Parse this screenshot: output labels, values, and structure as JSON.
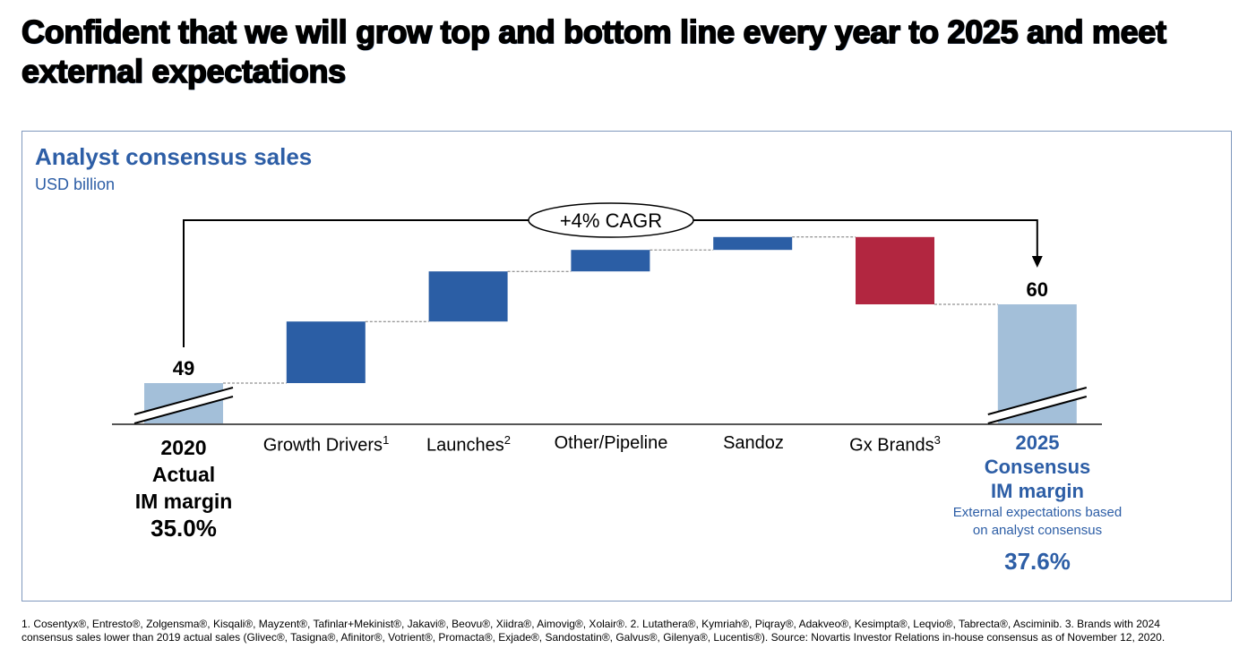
{
  "title": "Confident that we will grow top and bottom line every year to 2025 and meet external expectations",
  "panel": {
    "title": "Analyst consensus sales",
    "unit": "USD billion"
  },
  "chart_data": {
    "type": "waterfall",
    "title": "Analyst consensus sales",
    "ylabel": "USD billion",
    "categories": [
      "2020 Actual",
      "Growth Drivers",
      "Launches",
      "Other/Pipeline",
      "Sandoz",
      "Gx Brands",
      "2025 Consensus"
    ],
    "values": [
      49,
      8.6,
      7.0,
      3.0,
      1.8,
      -9.4,
      60
    ],
    "kinds": [
      "total",
      "delta",
      "delta",
      "delta",
      "delta",
      "delta",
      "total"
    ],
    "data_labels": {
      "start": "49",
      "end": "60"
    },
    "annotation": "+4% CAGR",
    "axis_break": true,
    "grid": false,
    "colors": {
      "total": "#a3bfd9",
      "increase": "#2b5ea5",
      "decrease": "#b22640"
    }
  },
  "labels": {
    "categories": [
      {
        "text": "Growth Drivers",
        "sup": "1"
      },
      {
        "text": "Launches",
        "sup": "2"
      },
      {
        "text": "Other/Pipeline",
        "sup": ""
      },
      {
        "text": "Sandoz",
        "sup": ""
      },
      {
        "text": "Gx Brands",
        "sup": "3"
      }
    ],
    "start": {
      "l1": "2020",
      "l2": "Actual",
      "l3": "IM margin",
      "pct": "35.0%"
    },
    "end": {
      "l1": "2025",
      "l2": "Consensus",
      "l3": "IM margin",
      "note1": "External expectations based",
      "note2": "on analyst consensus",
      "pct": "37.6%"
    }
  },
  "footnote": {
    "line1": "1. Cosentyx®, Entresto®, Zolgensma®, Kisqali®, Mayzent®, Tafinlar+Mekinist®, Jakavi®, Beovu®, Xiidra®, Aimovig®, Xolair®.     2. Lutathera®, Kymriah®, Piqray®, Adakveo®, Kesimpta®, Leqvio®, Tabrecta®, Asciminib.     3. Brands with 2024",
    "line2": "consensus sales lower than 2019 actual sales (Glivec®, Tasigna®, Afinitor®, Votrient®, Promacta®, Exjade®, Sandostatin®, Galvus®, Gilenya®, Lucentis®).     Source: Novartis Investor Relations in-house consensus as of November 12, 2020."
  }
}
